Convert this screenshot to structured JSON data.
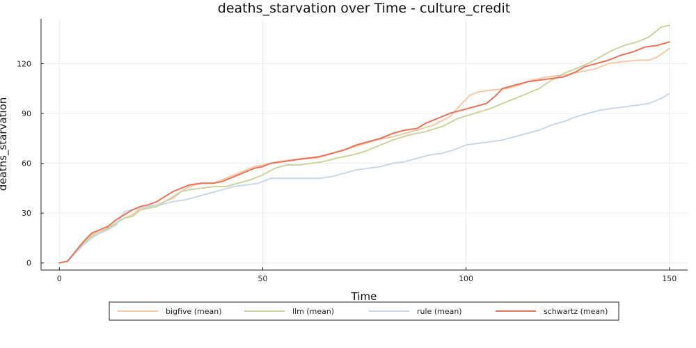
{
  "chart_data": {
    "type": "line",
    "title": "deaths_starvation over Time - culture_credit",
    "xlabel": "Time",
    "ylabel": "deaths_starvation",
    "xlim": [
      -4.5,
      154.5
    ],
    "ylim": [
      -4.3,
      147
    ],
    "xticks": [
      0,
      50,
      100,
      150
    ],
    "yticks": [
      0,
      30,
      60,
      90,
      120
    ],
    "grid": true,
    "legend_position": "bottom",
    "series": [
      {
        "name": "bigfive (mean)",
        "color": "#f5c8a6",
        "points": [
          [
            0,
            0
          ],
          [
            2,
            1
          ],
          [
            4,
            7
          ],
          [
            6,
            13
          ],
          [
            8,
            17
          ],
          [
            10,
            19
          ],
          [
            12,
            21
          ],
          [
            14,
            24
          ],
          [
            16,
            27
          ],
          [
            18,
            29
          ],
          [
            20,
            33
          ],
          [
            22,
            34
          ],
          [
            24,
            35
          ],
          [
            26,
            37
          ],
          [
            28,
            39
          ],
          [
            30,
            43
          ],
          [
            32,
            46
          ],
          [
            35,
            48
          ],
          [
            38,
            48
          ],
          [
            40,
            50
          ],
          [
            42,
            52
          ],
          [
            44,
            54
          ],
          [
            46,
            56
          ],
          [
            48,
            58
          ],
          [
            50,
            59
          ],
          [
            52,
            60
          ],
          [
            54,
            61
          ],
          [
            57,
            62
          ],
          [
            60,
            63
          ],
          [
            63,
            63
          ],
          [
            66,
            65
          ],
          [
            70,
            68
          ],
          [
            74,
            71
          ],
          [
            78,
            74
          ],
          [
            82,
            76
          ],
          [
            85,
            78
          ],
          [
            88,
            80
          ],
          [
            92,
            83
          ],
          [
            96,
            88
          ],
          [
            99,
            96
          ],
          [
            101,
            101
          ],
          [
            103,
            103
          ],
          [
            106,
            104
          ],
          [
            110,
            105
          ],
          [
            113,
            107
          ],
          [
            116,
            110
          ],
          [
            120,
            112
          ],
          [
            124,
            113
          ],
          [
            128,
            115
          ],
          [
            132,
            117
          ],
          [
            135,
            120
          ],
          [
            138,
            121
          ],
          [
            142,
            122
          ],
          [
            145,
            122
          ],
          [
            147,
            124
          ],
          [
            150,
            129
          ]
        ]
      },
      {
        "name": "llm (mean)",
        "color": "#c9d49e",
        "points": [
          [
            0,
            0
          ],
          [
            2,
            1
          ],
          [
            4,
            6
          ],
          [
            6,
            12
          ],
          [
            8,
            16
          ],
          [
            10,
            18
          ],
          [
            12,
            21
          ],
          [
            14,
            24
          ],
          [
            16,
            27
          ],
          [
            18,
            28
          ],
          [
            20,
            32
          ],
          [
            22,
            33
          ],
          [
            24,
            34
          ],
          [
            26,
            37
          ],
          [
            28,
            40
          ],
          [
            30,
            43
          ],
          [
            32,
            44
          ],
          [
            35,
            45
          ],
          [
            38,
            46
          ],
          [
            41,
            46
          ],
          [
            44,
            48
          ],
          [
            47,
            50
          ],
          [
            50,
            53
          ],
          [
            53,
            57
          ],
          [
            56,
            59
          ],
          [
            59,
            59
          ],
          [
            62,
            60
          ],
          [
            65,
            61
          ],
          [
            68,
            63
          ],
          [
            72,
            65
          ],
          [
            75,
            67
          ],
          [
            78,
            70
          ],
          [
            82,
            74
          ],
          [
            86,
            77
          ],
          [
            90,
            79
          ],
          [
            94,
            82
          ],
          [
            98,
            87
          ],
          [
            102,
            90
          ],
          [
            106,
            93
          ],
          [
            110,
            97
          ],
          [
            114,
            101
          ],
          [
            118,
            105
          ],
          [
            121,
            110
          ],
          [
            124,
            114
          ],
          [
            127,
            117
          ],
          [
            130,
            120
          ],
          [
            133,
            124
          ],
          [
            136,
            128
          ],
          [
            139,
            131
          ],
          [
            142,
            133
          ],
          [
            145,
            136
          ],
          [
            148,
            142
          ],
          [
            150,
            143
          ]
        ]
      },
      {
        "name": "rule (mean)",
        "color": "#c8d8e6",
        "points": [
          [
            0,
            0
          ],
          [
            2,
            1
          ],
          [
            4,
            6
          ],
          [
            6,
            11
          ],
          [
            8,
            15
          ],
          [
            10,
            18
          ],
          [
            12,
            20
          ],
          [
            14,
            23
          ],
          [
            16,
            31
          ],
          [
            18,
            32
          ],
          [
            20,
            33
          ],
          [
            22,
            34
          ],
          [
            25,
            35
          ],
          [
            28,
            37
          ],
          [
            31,
            38
          ],
          [
            34,
            40
          ],
          [
            37,
            42
          ],
          [
            40,
            44
          ],
          [
            43,
            46
          ],
          [
            46,
            47
          ],
          [
            49,
            48
          ],
          [
            52,
            51
          ],
          [
            55,
            51
          ],
          [
            58,
            51
          ],
          [
            61,
            51
          ],
          [
            64,
            51
          ],
          [
            67,
            52
          ],
          [
            70,
            54
          ],
          [
            73,
            56
          ],
          [
            76,
            57
          ],
          [
            79,
            58
          ],
          [
            82,
            60
          ],
          [
            85,
            61
          ],
          [
            88,
            63
          ],
          [
            91,
            65
          ],
          [
            94,
            66
          ],
          [
            97,
            68
          ],
          [
            100,
            71
          ],
          [
            103,
            72
          ],
          [
            106,
            73
          ],
          [
            109,
            74
          ],
          [
            112,
            76
          ],
          [
            115,
            78
          ],
          [
            118,
            80
          ],
          [
            121,
            83
          ],
          [
            124,
            85
          ],
          [
            127,
            88
          ],
          [
            130,
            90
          ],
          [
            133,
            92
          ],
          [
            136,
            93
          ],
          [
            139,
            94
          ],
          [
            142,
            95
          ],
          [
            145,
            96
          ],
          [
            148,
            99
          ],
          [
            150,
            102
          ]
        ]
      },
      {
        "name": "schwartz (mean)",
        "color": "#e8725a",
        "points": [
          [
            0,
            0
          ],
          [
            2,
            1
          ],
          [
            4,
            7
          ],
          [
            6,
            13
          ],
          [
            8,
            18
          ],
          [
            10,
            20
          ],
          [
            12,
            22
          ],
          [
            14,
            26
          ],
          [
            16,
            29
          ],
          [
            18,
            32
          ],
          [
            20,
            34
          ],
          [
            22,
            35
          ],
          [
            24,
            37
          ],
          [
            26,
            40
          ],
          [
            28,
            43
          ],
          [
            30,
            45
          ],
          [
            32,
            47
          ],
          [
            35,
            48
          ],
          [
            38,
            48
          ],
          [
            40,
            49
          ],
          [
            42,
            51
          ],
          [
            44,
            53
          ],
          [
            46,
            55
          ],
          [
            48,
            57
          ],
          [
            50,
            58
          ],
          [
            52,
            60
          ],
          [
            55,
            61
          ],
          [
            58,
            62
          ],
          [
            61,
            63
          ],
          [
            64,
            64
          ],
          [
            67,
            66
          ],
          [
            70,
            68
          ],
          [
            73,
            71
          ],
          [
            76,
            73
          ],
          [
            79,
            75
          ],
          [
            82,
            78
          ],
          [
            85,
            80
          ],
          [
            88,
            81
          ],
          [
            90,
            84
          ],
          [
            93,
            87
          ],
          [
            96,
            90
          ],
          [
            99,
            92
          ],
          [
            102,
            94
          ],
          [
            105,
            96
          ],
          [
            107,
            100
          ],
          [
            109,
            105
          ],
          [
            112,
            107
          ],
          [
            115,
            109
          ],
          [
            118,
            110
          ],
          [
            121,
            111
          ],
          [
            124,
            112
          ],
          [
            127,
            115
          ],
          [
            129,
            118
          ],
          [
            132,
            120
          ],
          [
            135,
            122
          ],
          [
            138,
            125
          ],
          [
            141,
            127
          ],
          [
            144,
            130
          ],
          [
            147,
            131
          ],
          [
            150,
            133
          ]
        ]
      }
    ]
  }
}
